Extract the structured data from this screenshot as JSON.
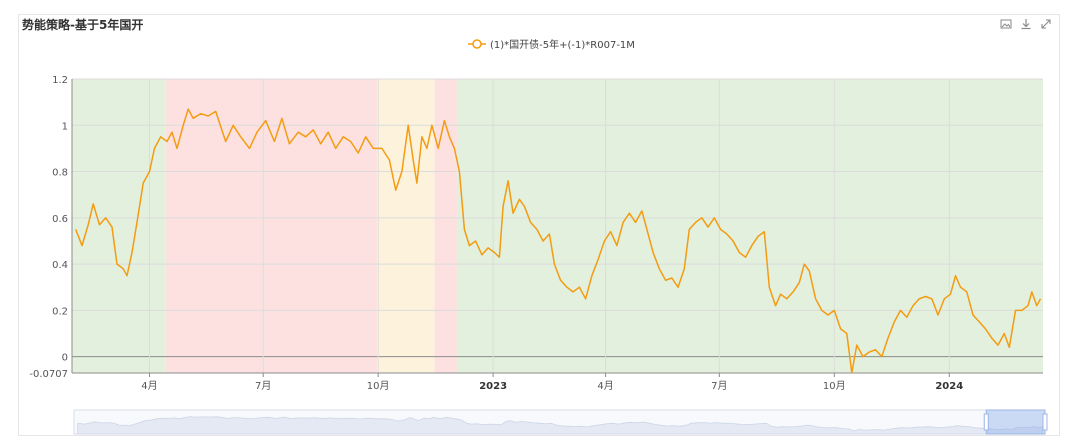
{
  "toolbar": {
    "save_icon": "image-icon",
    "download_icon": "download-icon",
    "fullscreen_icon": "expand-icon"
  },
  "chart_data": {
    "type": "line",
    "title": "势能策略-基于5年国开",
    "legend": "top-center",
    "series": [
      {
        "name": "(1)*国开债-5年+(-1)*R007-1M",
        "color": "#f39c12",
        "points": [
          [
            "2022-02-01",
            0.55
          ],
          [
            "2022-02-06",
            0.48
          ],
          [
            "2022-02-11",
            0.57
          ],
          [
            "2022-02-15",
            0.66
          ],
          [
            "2022-02-20",
            0.57
          ],
          [
            "2022-02-25",
            0.6
          ],
          [
            "2022-03-02",
            0.56
          ],
          [
            "2022-03-06",
            0.4
          ],
          [
            "2022-03-11",
            0.38
          ],
          [
            "2022-03-14",
            0.35
          ],
          [
            "2022-03-18",
            0.45
          ],
          [
            "2022-03-22",
            0.58
          ],
          [
            "2022-03-27",
            0.75
          ],
          [
            "2022-04-01",
            0.8
          ],
          [
            "2022-04-05",
            0.9
          ],
          [
            "2022-04-10",
            0.95
          ],
          [
            "2022-04-15",
            0.93
          ],
          [
            "2022-04-19",
            0.97
          ],
          [
            "2022-04-23",
            0.9
          ],
          [
            "2022-04-28",
            1.0
          ],
          [
            "2022-05-02",
            1.07
          ],
          [
            "2022-05-06",
            1.03
          ],
          [
            "2022-05-12",
            1.05
          ],
          [
            "2022-05-18",
            1.04
          ],
          [
            "2022-05-24",
            1.06
          ],
          [
            "2022-06-01",
            0.93
          ],
          [
            "2022-06-07",
            1.0
          ],
          [
            "2022-06-13",
            0.95
          ],
          [
            "2022-06-20",
            0.9
          ],
          [
            "2022-06-26",
            0.97
          ],
          [
            "2022-07-03",
            1.02
          ],
          [
            "2022-07-10",
            0.93
          ],
          [
            "2022-07-16",
            1.03
          ],
          [
            "2022-07-22",
            0.92
          ],
          [
            "2022-07-29",
            0.97
          ],
          [
            "2022-08-04",
            0.95
          ],
          [
            "2022-08-10",
            0.98
          ],
          [
            "2022-08-16",
            0.92
          ],
          [
            "2022-08-22",
            0.97
          ],
          [
            "2022-08-28",
            0.9
          ],
          [
            "2022-09-03",
            0.95
          ],
          [
            "2022-09-09",
            0.93
          ],
          [
            "2022-09-15",
            0.88
          ],
          [
            "2022-09-21",
            0.95
          ],
          [
            "2022-09-27",
            0.9
          ],
          [
            "2022-10-04",
            0.9
          ],
          [
            "2022-10-10",
            0.85
          ],
          [
            "2022-10-15",
            0.72
          ],
          [
            "2022-10-20",
            0.8
          ],
          [
            "2022-10-25",
            1.0
          ],
          [
            "2022-10-29",
            0.85
          ],
          [
            "2022-11-01",
            0.75
          ],
          [
            "2022-11-05",
            0.95
          ],
          [
            "2022-11-09",
            0.9
          ],
          [
            "2022-11-13",
            1.0
          ],
          [
            "2022-11-18",
            0.9
          ],
          [
            "2022-11-23",
            1.02
          ],
          [
            "2022-11-27",
            0.95
          ],
          [
            "2022-12-01",
            0.9
          ],
          [
            "2022-12-05",
            0.8
          ],
          [
            "2022-12-09",
            0.55
          ],
          [
            "2022-12-13",
            0.48
          ],
          [
            "2022-12-18",
            0.5
          ],
          [
            "2022-12-23",
            0.44
          ],
          [
            "2022-12-28",
            0.47
          ],
          [
            "2023-01-02",
            0.45
          ],
          [
            "2023-01-06",
            0.43
          ],
          [
            "2023-01-09",
            0.65
          ],
          [
            "2023-01-13",
            0.76
          ],
          [
            "2023-01-17",
            0.62
          ],
          [
            "2023-01-22",
            0.68
          ],
          [
            "2023-01-26",
            0.65
          ],
          [
            "2023-01-31",
            0.58
          ],
          [
            "2023-02-05",
            0.55
          ],
          [
            "2023-02-10",
            0.5
          ],
          [
            "2023-02-15",
            0.53
          ],
          [
            "2023-02-19",
            0.4
          ],
          [
            "2023-02-24",
            0.33
          ],
          [
            "2023-03-01",
            0.3
          ],
          [
            "2023-03-06",
            0.28
          ],
          [
            "2023-03-11",
            0.3
          ],
          [
            "2023-03-16",
            0.25
          ],
          [
            "2023-03-21",
            0.35
          ],
          [
            "2023-03-26",
            0.42
          ],
          [
            "2023-03-31",
            0.5
          ],
          [
            "2023-04-05",
            0.54
          ],
          [
            "2023-04-10",
            0.48
          ],
          [
            "2023-04-15",
            0.58
          ],
          [
            "2023-04-20",
            0.62
          ],
          [
            "2023-04-25",
            0.58
          ],
          [
            "2023-04-30",
            0.63
          ],
          [
            "2023-05-04",
            0.55
          ],
          [
            "2023-05-09",
            0.45
          ],
          [
            "2023-05-14",
            0.38
          ],
          [
            "2023-05-19",
            0.33
          ],
          [
            "2023-05-24",
            0.34
          ],
          [
            "2023-05-29",
            0.3
          ],
          [
            "2023-06-03",
            0.38
          ],
          [
            "2023-06-07",
            0.55
          ],
          [
            "2023-06-12",
            0.58
          ],
          [
            "2023-06-17",
            0.6
          ],
          [
            "2023-06-22",
            0.56
          ],
          [
            "2023-06-27",
            0.6
          ],
          [
            "2023-07-02",
            0.55
          ],
          [
            "2023-07-07",
            0.53
          ],
          [
            "2023-07-12",
            0.5
          ],
          [
            "2023-07-17",
            0.45
          ],
          [
            "2023-07-22",
            0.43
          ],
          [
            "2023-07-27",
            0.48
          ],
          [
            "2023-08-01",
            0.52
          ],
          [
            "2023-08-06",
            0.54
          ],
          [
            "2023-08-10",
            0.3
          ],
          [
            "2023-08-15",
            0.22
          ],
          [
            "2023-08-19",
            0.27
          ],
          [
            "2023-08-24",
            0.25
          ],
          [
            "2023-08-29",
            0.28
          ],
          [
            "2023-09-03",
            0.32
          ],
          [
            "2023-09-07",
            0.4
          ],
          [
            "2023-09-11",
            0.37
          ],
          [
            "2023-09-16",
            0.25
          ],
          [
            "2023-09-21",
            0.2
          ],
          [
            "2023-09-26",
            0.18
          ],
          [
            "2023-10-01",
            0.2
          ],
          [
            "2023-10-06",
            0.12
          ],
          [
            "2023-10-11",
            0.1
          ],
          [
            "2023-10-15",
            -0.07
          ],
          [
            "2023-10-19",
            0.05
          ],
          [
            "2023-10-24",
            0.0
          ],
          [
            "2023-10-29",
            0.02
          ],
          [
            "2023-11-03",
            0.03
          ],
          [
            "2023-11-08",
            0.0
          ],
          [
            "2023-11-13",
            0.08
          ],
          [
            "2023-11-18",
            0.15
          ],
          [
            "2023-11-23",
            0.2
          ],
          [
            "2023-11-28",
            0.17
          ],
          [
            "2023-12-03",
            0.22
          ],
          [
            "2023-12-08",
            0.25
          ],
          [
            "2023-12-13",
            0.26
          ],
          [
            "2023-12-18",
            0.25
          ],
          [
            "2023-12-23",
            0.18
          ],
          [
            "2023-12-28",
            0.25
          ],
          [
            "2024-01-02",
            0.27
          ],
          [
            "2024-01-06",
            0.35
          ],
          [
            "2024-01-10",
            0.3
          ],
          [
            "2024-01-15",
            0.28
          ],
          [
            "2024-01-20",
            0.18
          ],
          [
            "2024-01-25",
            0.15
          ],
          [
            "2024-01-30",
            0.12
          ],
          [
            "2024-02-04",
            0.08
          ],
          [
            "2024-02-09",
            0.05
          ],
          [
            "2024-02-14",
            0.1
          ],
          [
            "2024-02-18",
            0.04
          ],
          [
            "2024-02-23",
            0.2
          ],
          [
            "2024-02-28",
            0.2
          ],
          [
            "2024-03-04",
            0.22
          ],
          [
            "2024-03-07",
            0.28
          ],
          [
            "2024-03-11",
            0.22
          ],
          [
            "2024-03-14",
            0.25
          ]
        ]
      }
    ],
    "x_range": [
      "2022-01-29",
      "2024-03-16"
    ],
    "x_tick_labels": [
      {
        "date": "2022-04-01",
        "label": "4月",
        "bold": false
      },
      {
        "date": "2022-07-01",
        "label": "7月",
        "bold": false
      },
      {
        "date": "2022-10-01",
        "label": "10月",
        "bold": false
      },
      {
        "date": "2023-01-01",
        "label": "2023",
        "bold": true
      },
      {
        "date": "2023-04-01",
        "label": "4月",
        "bold": false
      },
      {
        "date": "2023-07-01",
        "label": "7月",
        "bold": false
      },
      {
        "date": "2023-10-01",
        "label": "10月",
        "bold": false
      },
      {
        "date": "2024-01-01",
        "label": "2024",
        "bold": true
      },
      {
        "date": "2024-04-01",
        "label": "4月",
        "bold": false
      }
    ],
    "ylim": [
      -0.0707,
      1.2
    ],
    "y_tick_labels": [
      "-0.0707",
      "0",
      "0.2",
      "0.4",
      "0.6",
      "0.8",
      "1",
      "1.2"
    ],
    "y_tick_values": [
      -0.0707,
      0,
      0.2,
      0.4,
      0.6,
      0.8,
      1,
      1.2
    ],
    "regions": [
      {
        "start": "2022-01-29",
        "end": "2022-04-14",
        "color": "#e3f0dd"
      },
      {
        "start": "2022-04-14",
        "end": "2022-09-30",
        "color": "#fde1e1"
      },
      {
        "start": "2022-09-30",
        "end": "2022-11-15",
        "color": "#fdf3dc"
      },
      {
        "start": "2022-11-15",
        "end": "2022-12-03",
        "color": "#fde1e1"
      },
      {
        "start": "2022-12-03",
        "end": "2024-03-16",
        "color": "#e3f0dd"
      }
    ],
    "grid": true,
    "datazoom": {
      "type": "slider",
      "window": [
        "2024-01-29",
        "2024-03-16"
      ]
    }
  }
}
